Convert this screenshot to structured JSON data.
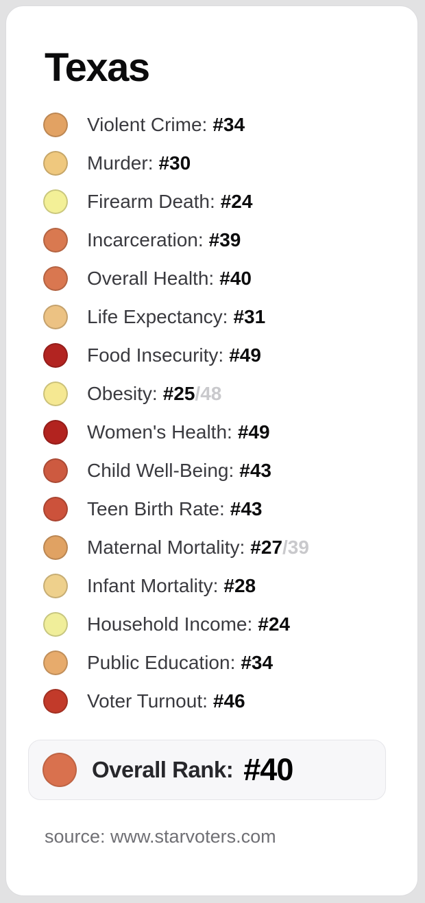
{
  "title": "Texas",
  "stats": [
    {
      "label": "Violent Crime:",
      "value": "#34",
      "secondary": "",
      "color": "#e2a263"
    },
    {
      "label": "Murder:",
      "value": "#30",
      "secondary": "",
      "color": "#efc87e"
    },
    {
      "label": "Firearm Death:",
      "value": "#24",
      "secondary": "",
      "color": "#f3f097"
    },
    {
      "label": "Incarceration:",
      "value": "#39",
      "secondary": "",
      "color": "#d97950"
    },
    {
      "label": "Overall Health:",
      "value": "#40",
      "secondary": "",
      "color": "#d97750"
    },
    {
      "label": "Life Expectancy:",
      "value": "#31",
      "secondary": "",
      "color": "#ecc283"
    },
    {
      "label": "Food Insecurity:",
      "value": "#49",
      "secondary": "",
      "color": "#b22421"
    },
    {
      "label": "Obesity:",
      "value": "#25",
      "secondary": "/48",
      "color": "#f5e892"
    },
    {
      "label": "Women's Health:",
      "value": "#49",
      "secondary": "",
      "color": "#b2231f"
    },
    {
      "label": "Child Well-Being:",
      "value": "#43",
      "secondary": "",
      "color": "#cd5a40"
    },
    {
      "label": "Teen Birth Rate:",
      "value": "#43",
      "secondary": "",
      "color": "#cc523b"
    },
    {
      "label": "Maternal Mortality:",
      "value": "#27",
      "secondary": "/39",
      "color": "#e0a263"
    },
    {
      "label": "Infant Mortality:",
      "value": "#28",
      "secondary": "",
      "color": "#eed08c"
    },
    {
      "label": "Household Income:",
      "value": "#24",
      "secondary": "",
      "color": "#f0ee9a"
    },
    {
      "label": "Public Education:",
      "value": "#34",
      "secondary": "",
      "color": "#e7ab6c"
    },
    {
      "label": "Voter Turnout:",
      "value": "#46",
      "secondary": "",
      "color": "#c23a2a"
    }
  ],
  "overall": {
    "label": "Overall Rank:",
    "value": "#40",
    "color": "#d9714e"
  },
  "source": "source: www.starvoters.com",
  "colors": {
    "page_background": "#e2e2e3",
    "card_background": "#ffffff",
    "overall_box_background": "#f7f7f9",
    "secondary_text": "#c9c9cc",
    "scale_best_yellow": "#f3f097",
    "scale_worst_red": "#b2231f"
  },
  "chart_data": {
    "type": "table",
    "title": "Texas",
    "categories": [
      "Violent Crime",
      "Murder",
      "Firearm Death",
      "Incarceration",
      "Overall Health",
      "Life Expectancy",
      "Food Insecurity",
      "Obesity",
      "Women's Health",
      "Child Well-Being",
      "Teen Birth Rate",
      "Maternal Mortality",
      "Infant Mortality",
      "Household Income",
      "Public Education",
      "Voter Turnout"
    ],
    "values": [
      34,
      30,
      24,
      39,
      40,
      31,
      49,
      25,
      49,
      43,
      43,
      27,
      28,
      24,
      34,
      46
    ],
    "secondary_values": {
      "Obesity": "25/48",
      "Maternal Mortality": "27/39"
    },
    "overall_rank": 40,
    "legend_position": "none",
    "color_encoding": "dot color maps rank from pale yellow (better) to dark red (worse)"
  }
}
